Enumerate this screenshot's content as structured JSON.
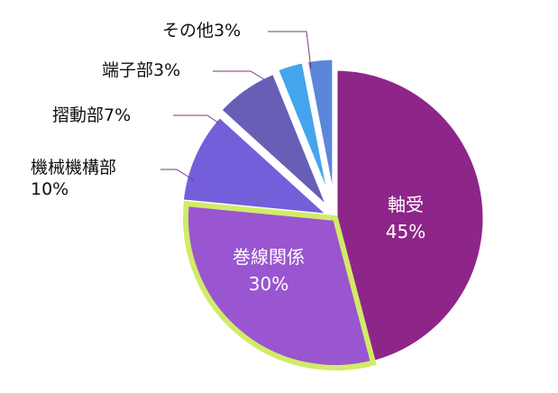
{
  "chart_data": {
    "type": "pie",
    "start_angle": "12 o'clock, clockwise",
    "slices": [
      {
        "label": "軸受",
        "value": 45,
        "value_label": "45%",
        "color": "#8E2589",
        "label_position": "inside"
      },
      {
        "label": "巻線関係",
        "value": 30,
        "value_label": "30%",
        "color": "#9A55D0",
        "label_position": "inside",
        "highlight_outline": "#D2EB67"
      },
      {
        "label": "機械機構部",
        "value": 10,
        "value_label": "10%",
        "color": "#755ED9",
        "label_position": "outside"
      },
      {
        "label": "摺動部",
        "value": 7,
        "value_label": "7%",
        "color": "#675FB5",
        "label_position": "outside"
      },
      {
        "label": "端子部",
        "value": 3,
        "value_label": "3%",
        "color": "#45A5EC",
        "label_position": "outside"
      },
      {
        "label": "その他",
        "value": 3,
        "value_label": "3%",
        "color": "#5B86DB",
        "label_position": "outside"
      }
    ],
    "leader_line_color": "#7A3A7A"
  }
}
